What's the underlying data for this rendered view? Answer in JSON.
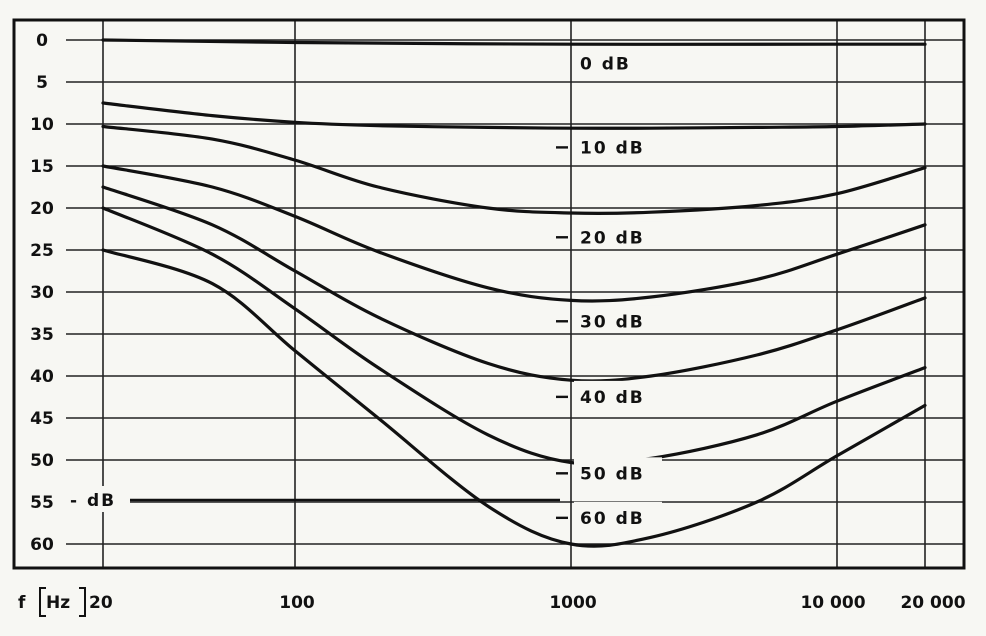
{
  "chart_data": {
    "type": "line",
    "x_scale": "log",
    "xlim": [
      20,
      20000
    ],
    "ylim": [
      0,
      62
    ],
    "y_inverted": true,
    "x_ticks": [
      20,
      100,
      1000,
      10000,
      20000
    ],
    "x_tick_labels": [
      "20",
      "100",
      "1000",
      "10 000",
      "20 000"
    ],
    "y_ticks": [
      0,
      5,
      10,
      15,
      20,
      25,
      30,
      35,
      40,
      45,
      50,
      55,
      60
    ],
    "y_tick_labels": [
      "0",
      "5",
      "10",
      "15",
      "20",
      "25",
      "30",
      "35",
      "40",
      "45",
      "50",
      "55",
      "60"
    ],
    "xlabel": "f",
    "xlabel_unit": "Hz",
    "ylabel": "- dB",
    "grid": true,
    "series": [
      {
        "name": "0 dB",
        "x": [
          20,
          100,
          1000,
          10000,
          20000
        ],
        "y": [
          0.0,
          0.3,
          0.5,
          0.5,
          0.5
        ]
      },
      {
        "name": "10 dB",
        "x": [
          20,
          50,
          100,
          200,
          500,
          1000,
          2000,
          5000,
          10000,
          20000
        ],
        "y": [
          7.5,
          9.0,
          9.8,
          10.2,
          10.4,
          10.5,
          10.5,
          10.4,
          10.3,
          10.0
        ]
      },
      {
        "name": "20 dB",
        "x": [
          20,
          50,
          100,
          200,
          500,
          1000,
          2000,
          5000,
          10000,
          20000
        ],
        "y": [
          10.3,
          11.8,
          14.3,
          17.5,
          20.0,
          20.6,
          20.5,
          19.7,
          18.3,
          15.2
        ]
      },
      {
        "name": "30 dB",
        "x": [
          20,
          50,
          100,
          200,
          500,
          1000,
          2000,
          5000,
          10000,
          20000
        ],
        "y": [
          15.0,
          17.5,
          21.0,
          25.2,
          29.5,
          31.0,
          30.6,
          28.5,
          25.5,
          22.0
        ]
      },
      {
        "name": "40 dB",
        "x": [
          20,
          50,
          100,
          200,
          500,
          1000,
          2000,
          5000,
          10000,
          20000
        ],
        "y": [
          17.5,
          22.0,
          27.5,
          33.0,
          38.5,
          40.5,
          40.0,
          37.5,
          34.5,
          30.7
        ]
      },
      {
        "name": "50 dB",
        "x": [
          20,
          50,
          100,
          200,
          500,
          1000,
          2000,
          5000,
          10000,
          20000
        ],
        "y": [
          20.0,
          25.5,
          32.0,
          39.0,
          47.0,
          50.3,
          49.8,
          47.0,
          43.0,
          39.0
        ]
      },
      {
        "name": "60 dB",
        "x": [
          20,
          50,
          100,
          200,
          500,
          1000,
          2000,
          5000,
          10000,
          20000
        ],
        "y": [
          25.0,
          29.0,
          37.0,
          45.0,
          55.5,
          60.0,
          59.2,
          55.0,
          49.5,
          43.5
        ]
      }
    ],
    "curve_labels": [
      {
        "text": "0 dB",
        "y": 3.5
      },
      {
        "text": "10 dB",
        "y": 13.5
      },
      {
        "text": "20 dB",
        "y": 24.2
      },
      {
        "text": "30 dB",
        "y": 34.2
      },
      {
        "text": "40 dB",
        "y": 43.2
      },
      {
        "text": "50 dB",
        "y": 52.3
      },
      {
        "text": "60 dB",
        "y": 57.6
      }
    ]
  }
}
